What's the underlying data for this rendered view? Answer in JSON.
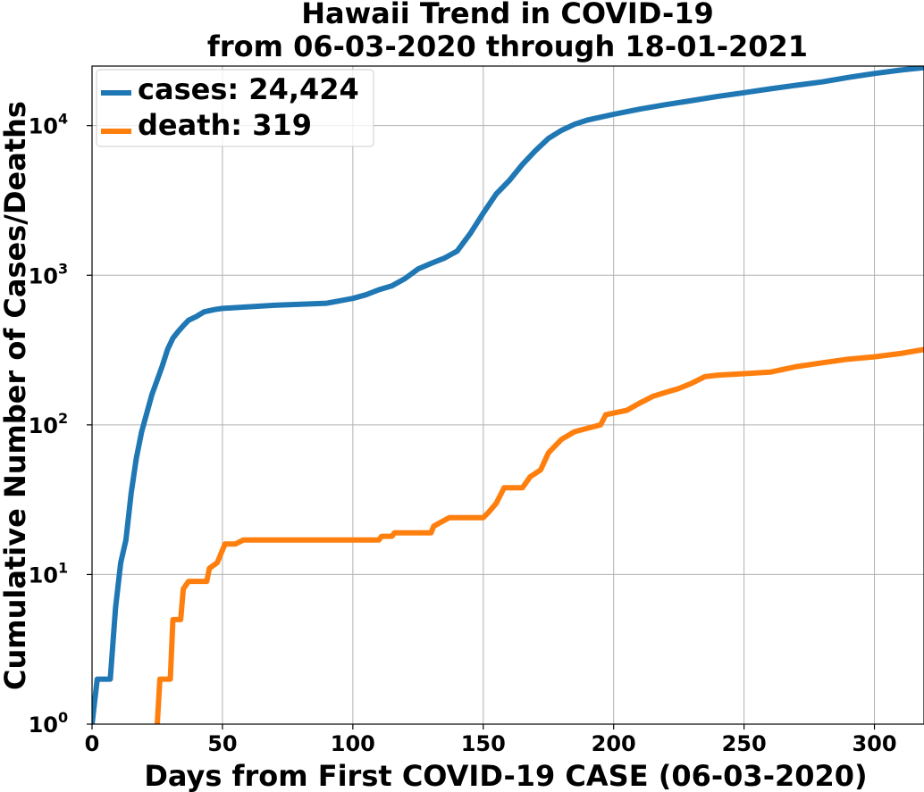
{
  "chart_data": {
    "type": "line",
    "title_line1": "Hawaii Trend in COVID-19",
    "title_line2": "from 06-03-2020 through 18-01-2021",
    "xlabel": "Days from First COVID-19 CASE (06-03-2020)",
    "ylabel": "Cumulative Number of Cases/Deaths",
    "xlim": [
      0,
      319
    ],
    "ylim": [
      1,
      25000
    ],
    "y_scale": "log",
    "grid": true,
    "legend_position": "top-left",
    "x_ticks": [
      0,
      50,
      100,
      150,
      200,
      250,
      300
    ],
    "y_ticks": [
      {
        "base": "10",
        "exp": "0",
        "value": 1
      },
      {
        "base": "10",
        "exp": "1",
        "value": 10
      },
      {
        "base": "10",
        "exp": "2",
        "value": 100
      },
      {
        "base": "10",
        "exp": "3",
        "value": 1000
      },
      {
        "base": "10",
        "exp": "4",
        "value": 10000
      }
    ],
    "series": [
      {
        "name": "cases: 24,424",
        "color": "#1f77b4",
        "points": [
          [
            0,
            1
          ],
          [
            2,
            2
          ],
          [
            7,
            2
          ],
          [
            9,
            6
          ],
          [
            11,
            12
          ],
          [
            13,
            17
          ],
          [
            15,
            35
          ],
          [
            17,
            60
          ],
          [
            19,
            90
          ],
          [
            21,
            120
          ],
          [
            23,
            160
          ],
          [
            25,
            200
          ],
          [
            27,
            250
          ],
          [
            29,
            320
          ],
          [
            31,
            380
          ],
          [
            33,
            420
          ],
          [
            35,
            460
          ],
          [
            37,
            500
          ],
          [
            40,
            530
          ],
          [
            43,
            570
          ],
          [
            47,
            590
          ],
          [
            50,
            600
          ],
          [
            60,
            615
          ],
          [
            70,
            630
          ],
          [
            80,
            640
          ],
          [
            90,
            650
          ],
          [
            100,
            700
          ],
          [
            105,
            740
          ],
          [
            110,
            800
          ],
          [
            115,
            850
          ],
          [
            120,
            950
          ],
          [
            125,
            1100
          ],
          [
            130,
            1200
          ],
          [
            135,
            1300
          ],
          [
            140,
            1450
          ],
          [
            145,
            1900
          ],
          [
            150,
            2600
          ],
          [
            155,
            3500
          ],
          [
            160,
            4300
          ],
          [
            165,
            5500
          ],
          [
            170,
            6800
          ],
          [
            175,
            8200
          ],
          [
            180,
            9300
          ],
          [
            185,
            10200
          ],
          [
            190,
            10900
          ],
          [
            200,
            11900
          ],
          [
            210,
            12900
          ],
          [
            220,
            13800
          ],
          [
            230,
            14700
          ],
          [
            240,
            15700
          ],
          [
            250,
            16600
          ],
          [
            260,
            17600
          ],
          [
            270,
            18600
          ],
          [
            280,
            19600
          ],
          [
            290,
            21000
          ],
          [
            300,
            22300
          ],
          [
            310,
            23500
          ],
          [
            319,
            24424
          ]
        ]
      },
      {
        "name": "death: 319",
        "color": "#ff7f0e",
        "points": [
          [
            25,
            1
          ],
          [
            26,
            2
          ],
          [
            30,
            2
          ],
          [
            31,
            5
          ],
          [
            34,
            5
          ],
          [
            35,
            8
          ],
          [
            37,
            9
          ],
          [
            44,
            9
          ],
          [
            45,
            11
          ],
          [
            48,
            12
          ],
          [
            51,
            16
          ],
          [
            55,
            16
          ],
          [
            58,
            17
          ],
          [
            110,
            17
          ],
          [
            111,
            18
          ],
          [
            115,
            18
          ],
          [
            116,
            19
          ],
          [
            130,
            19
          ],
          [
            131,
            21
          ],
          [
            133,
            22
          ],
          [
            137,
            24
          ],
          [
            150,
            24
          ],
          [
            152,
            26
          ],
          [
            155,
            30
          ],
          [
            158,
            38
          ],
          [
            165,
            38
          ],
          [
            168,
            45
          ],
          [
            172,
            50
          ],
          [
            175,
            65
          ],
          [
            180,
            80
          ],
          [
            185,
            90
          ],
          [
            190,
            95
          ],
          [
            195,
            100
          ],
          [
            197,
            117
          ],
          [
            205,
            125
          ],
          [
            210,
            140
          ],
          [
            215,
            155
          ],
          [
            220,
            165
          ],
          [
            225,
            175
          ],
          [
            230,
            190
          ],
          [
            235,
            210
          ],
          [
            240,
            215
          ],
          [
            250,
            220
          ],
          [
            260,
            225
          ],
          [
            270,
            245
          ],
          [
            280,
            260
          ],
          [
            290,
            275
          ],
          [
            300,
            285
          ],
          [
            310,
            300
          ],
          [
            319,
            319
          ]
        ]
      }
    ]
  }
}
